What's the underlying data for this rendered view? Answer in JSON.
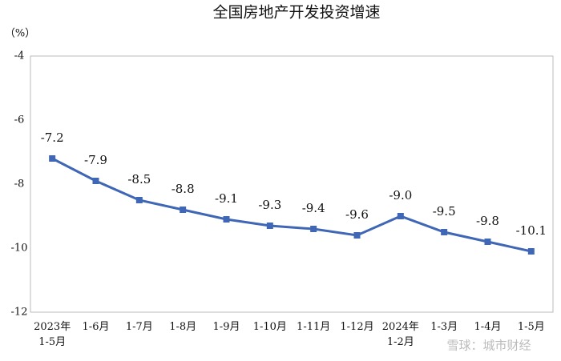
{
  "chart_data": {
    "type": "line",
    "title": "全国房地产开发投资增速",
    "unit_label": "（%）",
    "categories": [
      "2023年\n1-5月",
      "1-6月",
      "1-7月",
      "1-8月",
      "1-9月",
      "1-10月",
      "1-11月",
      "1-12月",
      "2024年\n1-2月",
      "1-3月",
      "1-4月",
      "1-5月"
    ],
    "series": [
      {
        "name": "全国房地产开发投资增速",
        "color": "#3f67b5",
        "values": [
          -7.2,
          -7.9,
          -8.5,
          -8.8,
          -9.1,
          -9.3,
          -9.4,
          -9.6,
          -9.0,
          -9.5,
          -9.8,
          -10.1
        ],
        "value_labels": [
          "-7.2",
          "-7.9",
          "-8.5",
          "-8.8",
          "-9.1",
          "-9.3",
          "-9.4",
          "-9.6",
          "-9.0",
          "-9.5",
          "-9.8",
          "-10.1"
        ]
      }
    ],
    "ylim": [
      -12,
      -4
    ],
    "yticks": [
      -12,
      -10,
      -8,
      -6,
      -4
    ],
    "grid": false,
    "watermark": "雪球：城市财经"
  }
}
